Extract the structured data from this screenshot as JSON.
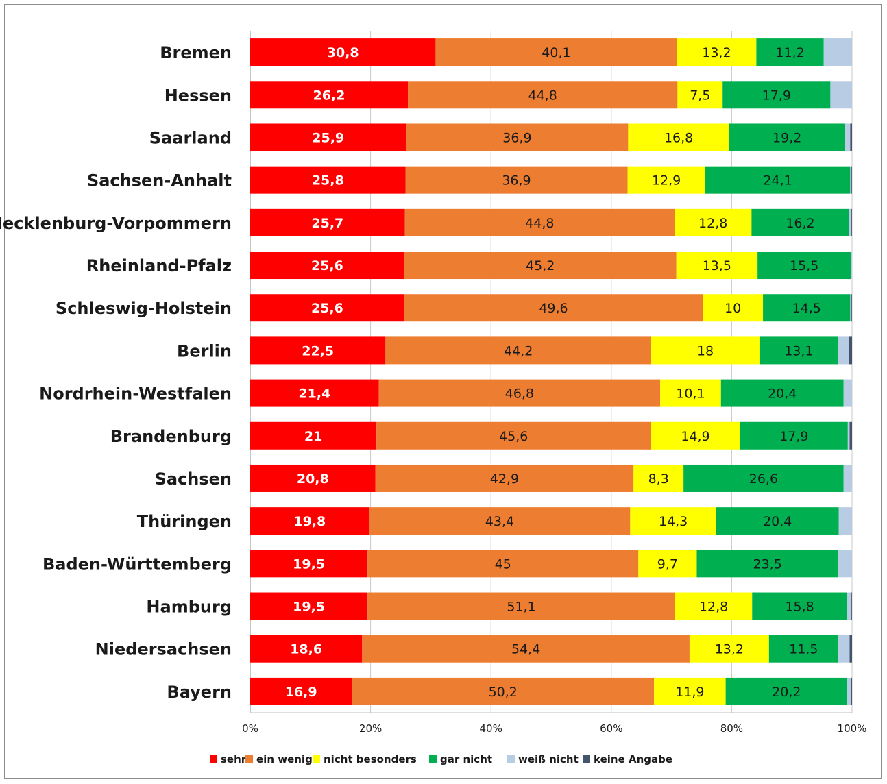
{
  "chart_data": {
    "type": "bar",
    "orientation": "horizontal",
    "stacked": "percent",
    "title": "",
    "xlabel": "",
    "ylabel": "",
    "xlim": [
      0,
      100
    ],
    "x_ticks": [
      "0%",
      "20%",
      "40%",
      "60%",
      "80%",
      "100%"
    ],
    "grid": true,
    "legend_position": "bottom",
    "categories": [
      "Bremen",
      "Hessen",
      "Saarland",
      "Sachsen-Anhalt",
      "Mecklenburg-Vorpommern",
      "Rheinland-Pfalz",
      "Schleswig-Holstein",
      "Berlin",
      "Nordrhein-Westfalen",
      "Brandenburg",
      "Sachsen",
      "Thüringen",
      "Baden-Württemberg",
      "Hamburg",
      "Niedersachsen",
      "Bayern"
    ],
    "series": [
      {
        "name": "sehr",
        "color": "#ff0000",
        "label_color": "#ffffff",
        "values": [
          30.8,
          26.2,
          25.9,
          25.8,
          25.7,
          25.6,
          25.6,
          22.5,
          21.4,
          21,
          20.8,
          19.8,
          19.5,
          19.5,
          18.6,
          16.9
        ],
        "labels": [
          "30,8",
          "26,2",
          "25,9",
          "25,8",
          "25,7",
          "25,6",
          "25,6",
          "22,5",
          "21,4",
          "21",
          "20,8",
          "19,8",
          "19,5",
          "19,5",
          "18,6",
          "16,9"
        ]
      },
      {
        "name": "ein wenig",
        "color": "#ed7d31",
        "label_color": "#1a1a1a",
        "values": [
          40.1,
          44.8,
          36.9,
          36.9,
          44.8,
          45.2,
          49.6,
          44.2,
          46.8,
          45.6,
          42.9,
          43.4,
          45,
          51.1,
          54.4,
          50.2
        ],
        "labels": [
          "40,1",
          "44,8",
          "36,9",
          "36,9",
          "44,8",
          "45,2",
          "49,6",
          "44,2",
          "46,8",
          "45,6",
          "42,9",
          "43,4",
          "45",
          "51,1",
          "54,4",
          "50,2"
        ]
      },
      {
        "name": "nicht besonders",
        "color": "#ffff00",
        "label_color": "#1a1a1a",
        "values": [
          13.2,
          7.5,
          16.8,
          12.9,
          12.8,
          13.5,
          10,
          18,
          10.1,
          14.9,
          8.3,
          14.3,
          9.7,
          12.8,
          13.2,
          11.9
        ],
        "labels": [
          "13,2",
          "7,5",
          "16,8",
          "12,9",
          "12,8",
          "13,5",
          "10",
          "18",
          "10,1",
          "14,9",
          "8,3",
          "14,3",
          "9,7",
          "12,8",
          "13,2",
          "11,9"
        ]
      },
      {
        "name": "gar nicht",
        "color": "#00b050",
        "label_color": "#1a1a1a",
        "values": [
          11.2,
          17.9,
          19.2,
          24.1,
          16.2,
          15.5,
          14.5,
          13.1,
          20.4,
          17.9,
          26.6,
          20.4,
          23.5,
          15.8,
          11.5,
          20.2
        ],
        "labels": [
          "11,2",
          "17,9",
          "19,2",
          "24,1",
          "16,2",
          "15,5",
          "14,5",
          "13,1",
          "20,4",
          "17,9",
          "26,6",
          "20,4",
          "23,5",
          "15,8",
          "11,5",
          "20,2"
        ]
      },
      {
        "name": "weiß nicht",
        "color": "#b8cce4",
        "label_color": "#1a1a1a",
        "values": [
          4.7,
          3.6,
          0.9,
          0.2,
          0.4,
          0.2,
          0.2,
          1.8,
          1.4,
          0.3,
          1.4,
          2.2,
          2.3,
          0.7,
          1.9,
          0.6
        ],
        "labels": []
      },
      {
        "name": "keine Angabe",
        "color": "#44546a",
        "label_color": "#ffffff",
        "values": [
          0,
          0,
          0.3,
          0.1,
          0.1,
          0,
          0.1,
          0.5,
          0,
          0.4,
          0,
          0,
          0,
          0.1,
          0.4,
          0.2
        ],
        "labels": []
      }
    ]
  }
}
